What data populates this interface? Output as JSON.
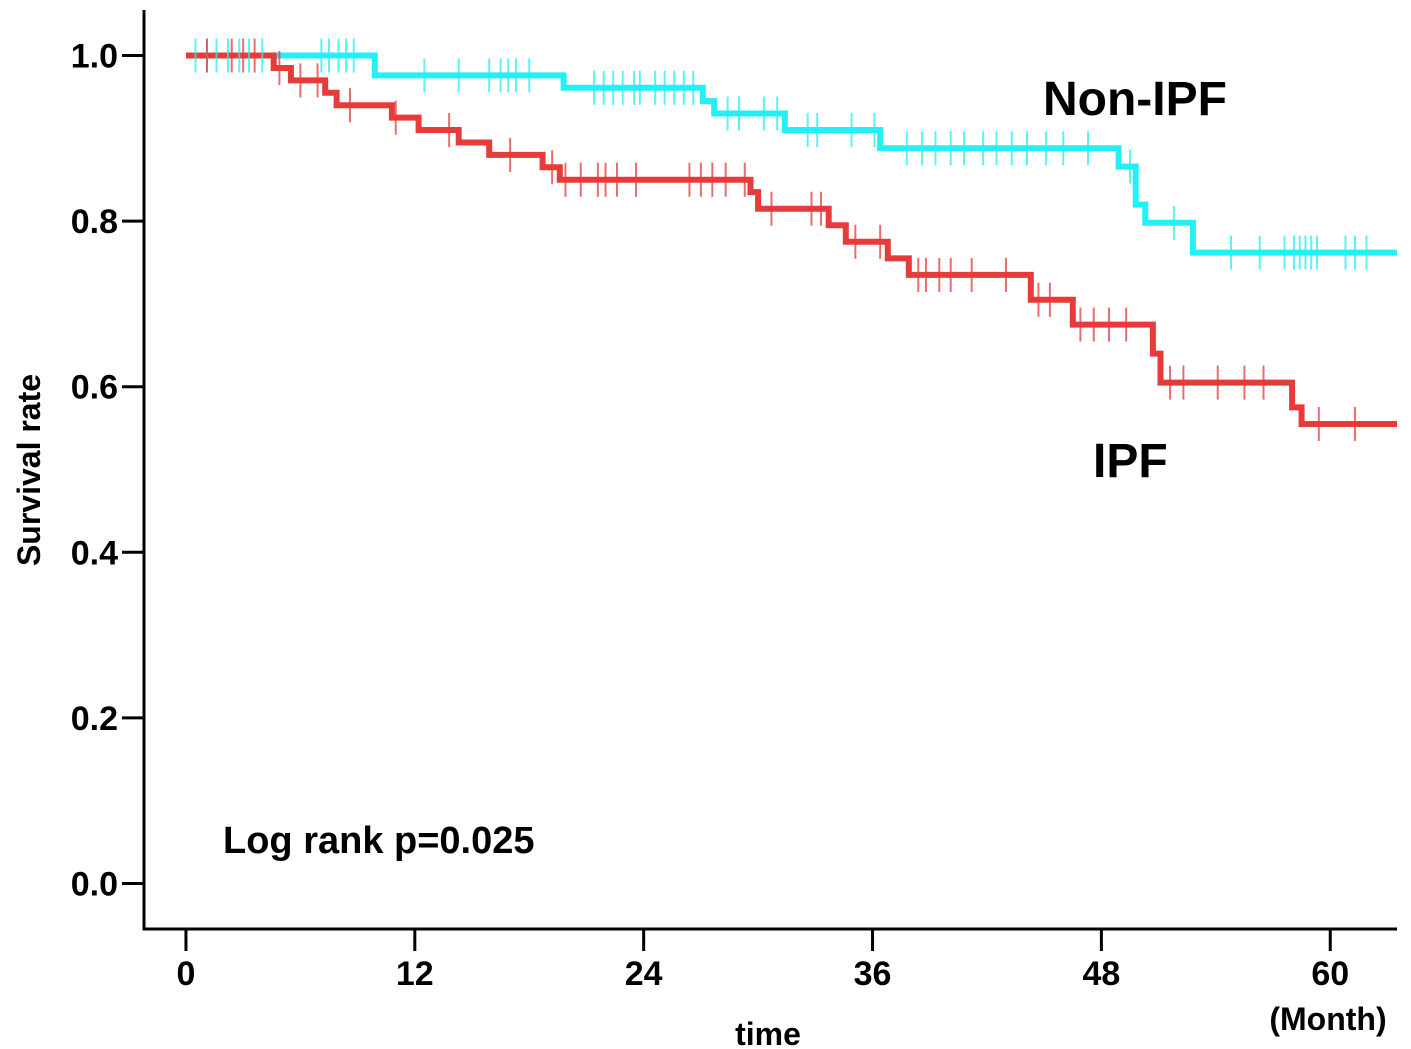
{
  "chart_data": {
    "type": "line",
    "subtype": "kaplan-meier survival curve",
    "xlabel": "time",
    "xunit": "(Month)",
    "ylabel": "Survival rate",
    "xlim": [
      -2.2,
      63.5
    ],
    "ylim": [
      -0.055,
      1.055
    ],
    "xticks": [
      0,
      12,
      24,
      36,
      48,
      60
    ],
    "yticks": [
      "0.0",
      "0.2",
      "0.4",
      "0.6",
      "0.8",
      "1.0"
    ],
    "grid": false,
    "annotations": {
      "pvalue": "Log rank p=0.025",
      "non_ipf_label": "Non-IPF",
      "ipf_label": "IPF"
    },
    "series": [
      {
        "name": "Non-IPF",
        "color": "#22f0f5",
        "steps": [
          [
            0,
            1.0
          ],
          [
            9.9,
            0.976
          ],
          [
            19.8,
            0.961
          ],
          [
            27.1,
            0.945
          ],
          [
            27.7,
            0.93
          ],
          [
            31.4,
            0.91
          ],
          [
            36.4,
            0.888
          ],
          [
            48.9,
            0.866
          ],
          [
            49.8,
            0.82
          ],
          [
            50.3,
            0.798
          ],
          [
            52.8,
            0.762
          ],
          [
            63.5,
            0.762
          ]
        ],
        "censored": [
          0.5,
          1.1,
          1.6,
          2.2,
          2.8,
          3.3,
          4.0,
          7.1,
          7.5,
          8.0,
          8.4,
          8.8,
          12.5,
          14.3,
          15.9,
          16.5,
          16.9,
          17.3,
          18.0,
          21.4,
          21.9,
          22.4,
          22.9,
          23.5,
          23.8,
          24.6,
          25.1,
          25.6,
          26.1,
          26.6,
          28.4,
          29.0,
          30.3,
          31.0,
          32.6,
          33.1,
          34.9,
          36.1,
          37.8,
          38.6,
          39.3,
          40.1,
          40.8,
          41.8,
          42.5,
          43.3,
          44.1,
          45.1,
          46.0,
          47.3,
          49.5,
          51.8,
          54.8,
          56.3,
          57.6,
          58.1,
          58.4,
          58.7,
          59.0,
          59.3,
          60.8,
          61.3,
          61.9
        ]
      },
      {
        "name": "IPF",
        "color": "#e63b3b",
        "steps": [
          [
            0,
            1.0
          ],
          [
            4.6,
            0.985
          ],
          [
            5.5,
            0.97
          ],
          [
            7.3,
            0.955
          ],
          [
            7.9,
            0.94
          ],
          [
            10.8,
            0.925
          ],
          [
            12.2,
            0.91
          ],
          [
            14.3,
            0.895
          ],
          [
            15.9,
            0.88
          ],
          [
            18.7,
            0.865
          ],
          [
            19.6,
            0.85
          ],
          [
            29.6,
            0.835
          ],
          [
            30.0,
            0.815
          ],
          [
            33.7,
            0.795
          ],
          [
            34.6,
            0.775
          ],
          [
            36.8,
            0.755
          ],
          [
            37.9,
            0.735
          ],
          [
            44.3,
            0.705
          ],
          [
            46.5,
            0.675
          ],
          [
            50.7,
            0.64
          ],
          [
            51.1,
            0.605
          ],
          [
            58.0,
            0.575
          ],
          [
            58.5,
            0.555
          ],
          [
            63.5,
            0.555
          ]
        ],
        "censored": [
          1.1,
          2.4,
          3.0,
          3.6,
          4.9,
          6.0,
          6.9,
          8.6,
          11.0,
          13.8,
          17.0,
          19.2,
          19.9,
          20.7,
          21.6,
          22.0,
          22.6,
          23.6,
          26.4,
          27.0,
          27.6,
          28.3,
          29.3,
          30.7,
          32.8,
          33.3,
          35.1,
          36.4,
          38.4,
          38.8,
          39.5,
          40.1,
          41.2,
          43.0,
          44.7,
          45.3,
          46.9,
          47.6,
          48.4,
          49.3,
          51.6,
          52.3,
          54.1,
          55.5,
          56.5,
          59.4,
          61.3
        ]
      }
    ]
  }
}
